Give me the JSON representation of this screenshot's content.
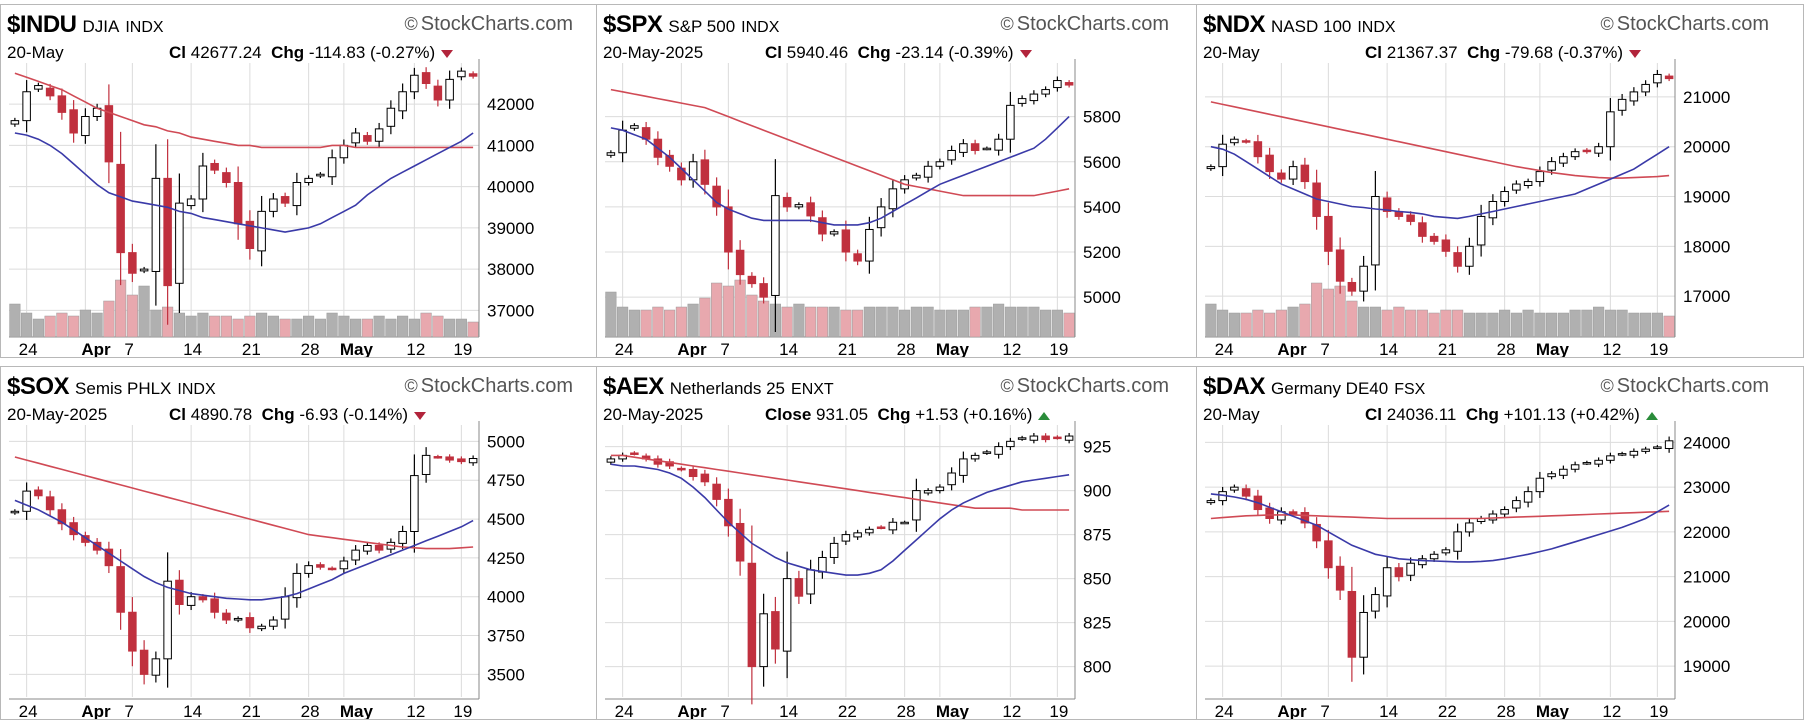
{
  "brand": "StockCharts.com",
  "brand_icon": "copyright-icon",
  "colors": {
    "up": "#ffffff",
    "down": "#c0303e",
    "ma_short": "#3a3aa8",
    "ma_long": "#d04a55",
    "vol_up": "#b0b0b0",
    "vol_down": "#e8a8ae",
    "grid": "#dcdcdc"
  },
  "panels": [
    {
      "symbol": "$INDU",
      "name": "DJIA",
      "exchange": "INDX",
      "date": "20-May",
      "close_label": "Cl",
      "close": "42677.24",
      "chg_label": "Chg",
      "chg": "-114.83 (-0.27%)",
      "direction": "down"
    },
    {
      "symbol": "$SPX",
      "name": "S&P 500",
      "exchange": "INDX",
      "date": "20-May-2025",
      "close_label": "Cl",
      "close": "5940.46",
      "chg_label": "Chg",
      "chg": "-23.14 (-0.39%)",
      "direction": "down"
    },
    {
      "symbol": "$NDX",
      "name": "NASD 100",
      "exchange": "INDX",
      "date": "20-May",
      "close_label": "Cl",
      "close": "21367.37",
      "chg_label": "Chg",
      "chg": "-79.68 (-0.37%)",
      "direction": "down"
    },
    {
      "symbol": "$SOX",
      "name": "Semis PHLX",
      "exchange": "INDX",
      "date": "20-May-2025",
      "close_label": "Cl",
      "close": "4890.78",
      "chg_label": "Chg",
      "chg": "-6.93 (-0.14%)",
      "direction": "down"
    },
    {
      "symbol": "$AEX",
      "name": "Netherlands 25",
      "exchange": "ENXT",
      "date": "20-May-2025",
      "close_label": "Close",
      "close": "931.05",
      "chg_label": "Chg",
      "chg": "+1.53 (+0.16%)",
      "direction": "up"
    },
    {
      "symbol": "$DAX",
      "name": "Germany DE40",
      "exchange": "FSX",
      "date": "20-May",
      "close_label": "Cl",
      "close": "24036.11",
      "chg_label": "Chg",
      "chg": "+101.13 (+0.42%)",
      "direction": "up"
    }
  ],
  "chart_data": [
    {
      "type": "candlestick",
      "title": "$INDU DJIA INDX",
      "x_ticks": [
        "24",
        "Apr",
        "7",
        "14",
        "21",
        "28",
        "May",
        "12",
        "19"
      ],
      "y_ticks": [
        42000,
        41000,
        40000,
        39000,
        38000,
        37000
      ],
      "ylim": [
        36500,
        42900
      ],
      "close": [
        41600,
        42300,
        42450,
        42200,
        41800,
        41300,
        41700,
        41900,
        40600,
        38400,
        37900,
        38000,
        40200,
        37600,
        39600,
        39700,
        40500,
        40400,
        40100,
        39100,
        38500,
        39400,
        39700,
        39600,
        40100,
        40200,
        40300,
        40700,
        41000,
        41300,
        41100,
        41400,
        41900,
        42300,
        42700,
        42500,
        42100,
        42600,
        42800,
        42677
      ],
      "ma_short": [
        41300,
        41250,
        41150,
        41000,
        40800,
        40550,
        40300,
        40050,
        39850,
        39750,
        39650,
        39600,
        39550,
        39500,
        39400,
        39350,
        39250,
        39200,
        39150,
        39100,
        39050,
        39000,
        38950,
        38900,
        38950,
        39000,
        39100,
        39250,
        39400,
        39550,
        39800,
        40000,
        40200,
        40350,
        40500,
        40650,
        40800,
        40950,
        41100,
        41300
      ],
      "ma_long": [
        42750,
        42650,
        42550,
        42450,
        42350,
        42200,
        42050,
        41900,
        41800,
        41700,
        41600,
        41500,
        41450,
        41350,
        41300,
        41200,
        41150,
        41100,
        41050,
        41000,
        41000,
        40950,
        40950,
        40950,
        40950,
        40950,
        40950,
        41000,
        41000,
        40950,
        40950,
        40950,
        40950,
        40950,
        40950,
        40950,
        40950,
        40950,
        40950,
        40950
      ],
      "volume": [
        0.55,
        0.4,
        0.3,
        0.35,
        0.4,
        0.35,
        0.45,
        0.4,
        0.6,
        0.95,
        0.7,
        0.85,
        0.45,
        0.5,
        0.4,
        0.35,
        0.4,
        0.35,
        0.35,
        0.3,
        0.35,
        0.4,
        0.35,
        0.3,
        0.3,
        0.35,
        0.3,
        0.4,
        0.35,
        0.3,
        0.3,
        0.35,
        0.3,
        0.35,
        0.3,
        0.4,
        0.35,
        0.3,
        0.3,
        0.25
      ]
    },
    {
      "type": "candlestick",
      "title": "$SPX S&P 500 INDX",
      "x_ticks": [
        "24",
        "Apr",
        "7",
        "14",
        "21",
        "28",
        "May",
        "12",
        "19"
      ],
      "y_ticks": [
        5800,
        5600,
        5400,
        5200,
        5000
      ],
      "ylim": [
        4850,
        6020
      ],
      "close": [
        5640,
        5740,
        5760,
        5700,
        5620,
        5580,
        5520,
        5600,
        5500,
        5400,
        5200,
        5100,
        5060,
        5000,
        5450,
        5400,
        5410,
        5360,
        5280,
        5290,
        5200,
        5160,
        5300,
        5400,
        5480,
        5520,
        5540,
        5580,
        5600,
        5650,
        5680,
        5650,
        5660,
        5700,
        5850,
        5880,
        5900,
        5920,
        5960,
        5940
      ],
      "ma_short": [
        5750,
        5740,
        5720,
        5700,
        5660,
        5620,
        5570,
        5520,
        5470,
        5420,
        5390,
        5370,
        5350,
        5340,
        5340,
        5340,
        5340,
        5340,
        5330,
        5320,
        5320,
        5320,
        5330,
        5350,
        5380,
        5410,
        5440,
        5470,
        5500,
        5520,
        5540,
        5560,
        5580,
        5600,
        5620,
        5640,
        5660,
        5700,
        5750,
        5800
      ],
      "ma_long": [
        5920,
        5910,
        5900,
        5890,
        5880,
        5870,
        5860,
        5850,
        5840,
        5820,
        5800,
        5780,
        5760,
        5740,
        5720,
        5700,
        5680,
        5660,
        5640,
        5620,
        5600,
        5580,
        5560,
        5540,
        5520,
        5500,
        5490,
        5480,
        5470,
        5460,
        5450,
        5450,
        5450,
        5450,
        5450,
        5450,
        5450,
        5460,
        5470,
        5480
      ],
      "volume": [
        0.75,
        0.5,
        0.45,
        0.45,
        0.5,
        0.45,
        0.5,
        0.55,
        0.65,
        0.9,
        0.85,
        0.95,
        0.7,
        0.6,
        0.55,
        0.5,
        0.55,
        0.5,
        0.5,
        0.5,
        0.45,
        0.45,
        0.5,
        0.5,
        0.5,
        0.45,
        0.5,
        0.5,
        0.45,
        0.45,
        0.45,
        0.5,
        0.5,
        0.55,
        0.5,
        0.5,
        0.5,
        0.45,
        0.45,
        0.4
      ]
    },
    {
      "type": "candlestick",
      "title": "$NDX NASD 100 INDX",
      "x_ticks": [
        "24",
        "Apr",
        "7",
        "14",
        "21",
        "28",
        "May",
        "12",
        "19"
      ],
      "y_ticks": [
        21000,
        20000,
        19000,
        18000,
        17000
      ],
      "ylim": [
        16300,
        21600
      ],
      "close": [
        19600,
        20050,
        20150,
        20100,
        19800,
        19500,
        19350,
        19600,
        19300,
        18600,
        17900,
        17300,
        17100,
        17600,
        19000,
        18700,
        18600,
        18500,
        18200,
        18100,
        17900,
        17600,
        18000,
        18600,
        18900,
        19100,
        19250,
        19300,
        19500,
        19700,
        19800,
        19900,
        19900,
        20000,
        20700,
        20950,
        21100,
        21250,
        21450,
        21367
      ],
      "ma_short": [
        20000,
        19950,
        19850,
        19700,
        19550,
        19400,
        19250,
        19150,
        19050,
        18950,
        18900,
        18850,
        18800,
        18780,
        18750,
        18730,
        18700,
        18680,
        18650,
        18600,
        18580,
        18560,
        18600,
        18650,
        18700,
        18750,
        18800,
        18850,
        18900,
        18950,
        19000,
        19050,
        19150,
        19250,
        19350,
        19450,
        19550,
        19700,
        19850,
        20000
      ],
      "ma_long": [
        20900,
        20850,
        20800,
        20750,
        20700,
        20650,
        20600,
        20550,
        20500,
        20450,
        20400,
        20350,
        20300,
        20250,
        20200,
        20150,
        20100,
        20050,
        20000,
        19950,
        19900,
        19850,
        19800,
        19750,
        19700,
        19650,
        19600,
        19560,
        19520,
        19480,
        19450,
        19420,
        19400,
        19380,
        19370,
        19370,
        19380,
        19390,
        19400,
        19420
      ],
      "volume": [
        0.55,
        0.45,
        0.4,
        0.4,
        0.45,
        0.4,
        0.45,
        0.5,
        0.55,
        0.9,
        0.8,
        0.85,
        0.6,
        0.5,
        0.5,
        0.45,
        0.5,
        0.45,
        0.45,
        0.4,
        0.45,
        0.45,
        0.4,
        0.4,
        0.4,
        0.45,
        0.4,
        0.45,
        0.4,
        0.4,
        0.4,
        0.45,
        0.45,
        0.5,
        0.45,
        0.45,
        0.4,
        0.4,
        0.4,
        0.35
      ]
    },
    {
      "type": "candlestick",
      "title": "$SOX Semis PHLX INDX",
      "x_ticks": [
        "24",
        "Apr",
        "7",
        "14",
        "21",
        "28",
        "May",
        "12",
        "19"
      ],
      "y_ticks": [
        5000,
        4750,
        4500,
        4250,
        4000,
        3750,
        3500
      ],
      "ylim": [
        3380,
        5080
      ],
      "close": [
        4550,
        4680,
        4650,
        4560,
        4470,
        4400,
        4350,
        4300,
        4200,
        3900,
        3650,
        3500,
        3600,
        4100,
        3950,
        4000,
        3980,
        3900,
        3850,
        3860,
        3800,
        3810,
        3850,
        4000,
        4150,
        4200,
        4190,
        4180,
        4230,
        4300,
        4330,
        4300,
        4350,
        4420,
        4780,
        4910,
        4900,
        4880,
        4870,
        4890
      ],
      "ma_short": [
        4620,
        4590,
        4560,
        4520,
        4480,
        4430,
        4380,
        4330,
        4280,
        4230,
        4180,
        4130,
        4090,
        4060,
        4040,
        4020,
        4010,
        4000,
        3990,
        3985,
        3980,
        3980,
        3990,
        4000,
        4020,
        4050,
        4080,
        4110,
        4150,
        4180,
        4210,
        4240,
        4270,
        4300,
        4330,
        4360,
        4390,
        4420,
        4450,
        4490
      ],
      "ma_long": [
        4900,
        4880,
        4860,
        4840,
        4820,
        4800,
        4780,
        4760,
        4740,
        4720,
        4700,
        4680,
        4660,
        4640,
        4620,
        4600,
        4580,
        4560,
        4540,
        4520,
        4500,
        4480,
        4460,
        4440,
        4420,
        4400,
        4390,
        4380,
        4370,
        4360,
        4350,
        4340,
        4330,
        4320,
        4315,
        4310,
        4310,
        4310,
        4315,
        4320
      ]
    },
    {
      "type": "candlestick",
      "title": "$AEX Netherlands 25 ENXT",
      "x_ticks": [
        "24",
        "Apr",
        "7",
        "14",
        "22",
        "28",
        "May",
        "12",
        "19"
      ],
      "y_ticks": [
        925,
        900,
        875,
        850,
        825,
        800
      ],
      "ylim": [
        785,
        935
      ],
      "close": [
        918,
        920,
        921,
        918,
        915,
        914,
        912,
        908,
        905,
        895,
        880,
        860,
        800,
        830,
        810,
        850,
        840,
        855,
        862,
        870,
        875,
        876,
        878,
        879,
        882,
        882,
        900,
        900,
        902,
        910,
        918,
        920,
        922,
        925,
        928,
        930,
        931,
        929,
        930,
        931
      ],
      "ma_short": [
        915,
        914,
        914,
        913,
        912,
        910,
        907,
        902,
        896,
        889,
        882,
        876,
        870,
        866,
        862,
        859,
        857,
        855,
        854,
        853,
        852,
        852,
        853,
        855,
        860,
        866,
        872,
        878,
        884,
        889,
        893,
        896,
        899,
        901,
        903,
        905,
        906,
        907,
        908,
        909
      ],
      "ma_long": [
        920,
        920,
        919,
        918,
        917,
        916,
        915,
        914,
        913,
        912,
        911,
        910,
        909,
        908,
        907,
        906,
        905,
        904,
        903,
        902,
        901,
        900,
        899,
        898,
        897,
        896,
        895,
        894,
        893,
        892,
        891,
        890,
        890,
        890,
        890,
        889,
        889,
        889,
        889,
        889
      ]
    },
    {
      "type": "candlestick",
      "title": "$DAX Germany DE40 FSX",
      "x_ticks": [
        "24",
        "Apr",
        "7",
        "14",
        "22",
        "28",
        "May",
        "12",
        "19"
      ],
      "y_ticks": [
        24000,
        23000,
        22000,
        21000,
        20000,
        19000
      ],
      "ylim": [
        18400,
        24300
      ],
      "close": [
        22700,
        22900,
        23000,
        22800,
        22500,
        22300,
        22450,
        22400,
        22200,
        21800,
        21200,
        20700,
        19200,
        20200,
        20600,
        21200,
        21000,
        21300,
        21400,
        21500,
        21600,
        22000,
        22200,
        22300,
        22400,
        22500,
        22700,
        22900,
        23200,
        23300,
        23400,
        23500,
        23550,
        23600,
        23700,
        23750,
        23800,
        23850,
        23900,
        24036
      ],
      "ma_short": [
        22850,
        22820,
        22780,
        22730,
        22650,
        22550,
        22450,
        22350,
        22250,
        22150,
        22000,
        21850,
        21700,
        21600,
        21500,
        21450,
        21400,
        21380,
        21360,
        21350,
        21340,
        21330,
        21330,
        21340,
        21360,
        21400,
        21450,
        21500,
        21560,
        21620,
        21700,
        21780,
        21860,
        21940,
        22020,
        22100,
        22200,
        22300,
        22450,
        22600
      ],
      "ma_long": [
        22300,
        22320,
        22340,
        22360,
        22370,
        22380,
        22380,
        22380,
        22370,
        22360,
        22350,
        22340,
        22330,
        22320,
        22310,
        22300,
        22300,
        22300,
        22300,
        22300,
        22300,
        22300,
        22300,
        22300,
        22310,
        22320,
        22330,
        22340,
        22350,
        22360,
        22370,
        22380,
        22390,
        22400,
        22410,
        22420,
        22430,
        22440,
        22450,
        22460
      ]
    }
  ]
}
